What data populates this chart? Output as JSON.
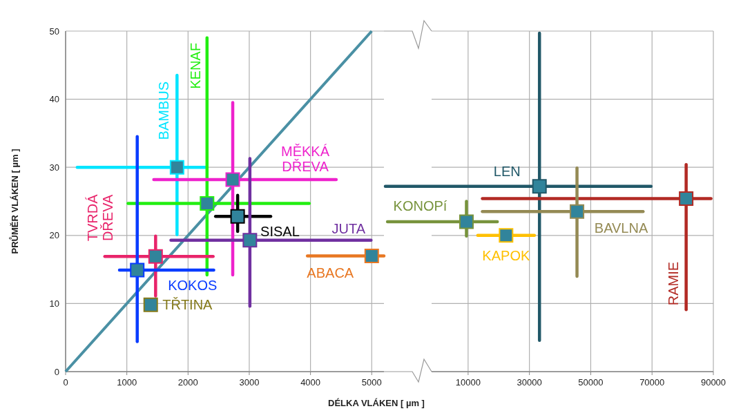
{
  "chart_data": [
    {
      "type": "scatter",
      "xlabel": "DÉLKA VLÁKEN [ µm ]",
      "ylabel": "PRŮMĚR VLÁKEN [ µm ]",
      "xlim": [
        0,
        5200
      ],
      "xticks": [
        0,
        1000,
        2000,
        3000,
        4000,
        5000
      ],
      "ylim": [
        0,
        50
      ],
      "yticks": [
        0,
        10,
        20,
        30,
        40,
        50
      ],
      "grid": true,
      "marker": "square",
      "series": [
        {
          "type": "line",
          "color": "#4a90a4",
          "x": [
            0,
            5000
          ],
          "values": [
            0,
            50
          ],
          "marker": "none"
        },
        {
          "name": "BAMBUS",
          "color": "#00e5ff",
          "x": [
            1820
          ],
          "values": [
            30.0
          ],
          "xerrors": [
            [
              190,
              2310
            ]
          ],
          "errors": [
            [
              20.1,
              43.5
            ]
          ]
        },
        {
          "name": "KENAF",
          "color": "#22ee11",
          "x": [
            2310
          ],
          "values": [
            24.7
          ],
          "xerrors": [
            [
              1020,
              3980
            ]
          ],
          "errors": [
            [
              14.2,
              49.0
            ]
          ]
        },
        {
          "name": "MĚKKÁ DŘEVA",
          "color": "#ee22cc",
          "x": [
            2730
          ],
          "values": [
            28.2
          ],
          "xerrors": [
            [
              1440,
              4420
            ]
          ],
          "errors": [
            [
              14.2,
              39.5
            ]
          ]
        },
        {
          "name": "SISAL",
          "color": "#000000",
          "x": [
            2810
          ],
          "values": [
            22.8
          ],
          "xerrors": [
            [
              2450,
              3350
            ]
          ],
          "errors": [
            [
              20.6,
              25.9
            ]
          ]
        },
        {
          "name": "JUTA",
          "color": "#7030a0",
          "x": [
            3010
          ],
          "values": [
            19.3
          ],
          "xerrors": [
            [
              1720,
              4990
            ]
          ],
          "errors": [
            [
              9.6,
              31.3
            ]
          ]
        },
        {
          "name": "ABACA",
          "color": "#e87722",
          "x": [
            5000
          ],
          "values": [
            17.0
          ],
          "xerrors": [
            [
              3950,
              5200
            ]
          ]
        },
        {
          "name": "TVRDÁ DŘEVA",
          "color": "#e8246a",
          "x": [
            1470
          ],
          "values": [
            16.9
          ],
          "xerrors": [
            [
              640,
              2410
            ]
          ],
          "errors": [
            [
              11.1,
              19.9
            ]
          ]
        },
        {
          "name": "KOKOS",
          "color": "#0a3cff",
          "x": [
            1170
          ],
          "values": [
            14.9
          ],
          "xerrors": [
            [
              880,
              2420
            ]
          ],
          "errors": [
            [
              4.4,
              34.5
            ]
          ]
        },
        {
          "name": "TŘTINA",
          "color": "#857a1a",
          "x": [
            1390
          ],
          "values": [
            9.8
          ]
        }
      ]
    },
    {
      "type": "scatter",
      "xlim": [
        -17000,
        90000
      ],
      "xticks": [
        10000,
        30000,
        50000,
        70000,
        90000
      ],
      "ylim": [
        0,
        50
      ],
      "yticks": [
        0,
        10,
        20,
        30,
        40,
        50
      ],
      "grid": true,
      "marker": "square",
      "tick_labels": "x",
      "series": [
        {
          "name": "LEN",
          "color": "#215868",
          "x": [
            33280
          ],
          "values": [
            27.2
          ],
          "xerrors": [
            [
              -17000,
              69700
            ]
          ],
          "errors": [
            [
              4.6,
              49.7
            ]
          ]
        },
        {
          "name": "RAMIE",
          "color": "#b22a24",
          "x": [
            81130
          ],
          "values": [
            25.4
          ],
          "xerrors": [
            [
              14650,
              89240
            ]
          ],
          "errors": [
            [
              9.1,
              30.4
            ]
          ]
        },
        {
          "name": "BAVLNA",
          "color": "#948a54",
          "x": [
            45520
          ],
          "values": [
            23.5
          ],
          "xerrors": [
            [
              14650,
              67080
            ]
          ],
          "errors": [
            [
              14.0,
              29.9
            ]
          ]
        },
        {
          "name": "KONOPí",
          "color": "#77933c",
          "x": [
            9460
          ],
          "values": [
            22.0
          ],
          "xerrors": [
            [
              -16300,
              19540
            ]
          ],
          "errors": [
            [
              19.9,
              25.0
            ]
          ]
        },
        {
          "name": "KAPOK",
          "color": "#ffc000",
          "x": [
            22380
          ],
          "values": [
            20.0
          ],
          "xerrors": [
            [
              13140,
              31620
            ]
          ]
        }
      ]
    }
  ]
}
